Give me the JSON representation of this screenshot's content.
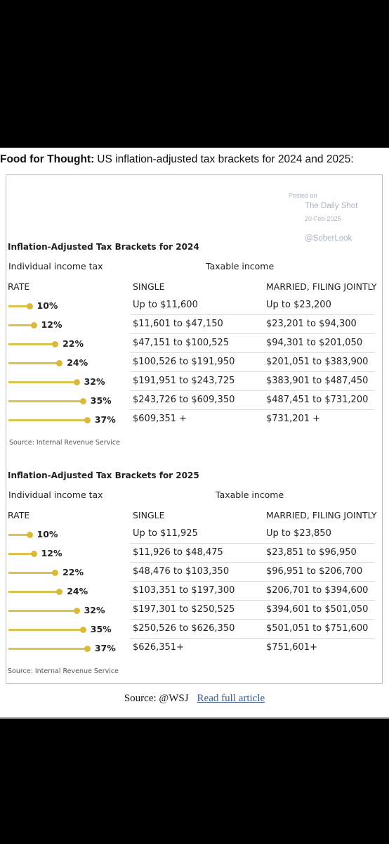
{
  "header": {
    "lead": "Food for Thought:",
    "text": "US inflation-adjusted tax brackets for 2024 and 2025:"
  },
  "watermark": {
    "posted": "Posted on",
    "site": "The Daily Shot",
    "date": "20-Feb-2025",
    "handle": "@SoberLook"
  },
  "tables": [
    {
      "title": "Inflation-Adjusted Tax Brackets for 2024",
      "group_left": "Individual income tax",
      "group_right": "Taxable income",
      "columns": [
        "RATE",
        "SINGLE",
        "MARRIED, FILING JOINTLY"
      ],
      "rows": [
        {
          "rate": 10,
          "rate_label": "10%",
          "single": "Up to $11,600",
          "married": "Up to $23,200"
        },
        {
          "rate": 12,
          "rate_label": "12%",
          "single": "$11,601 to $47,150",
          "married": "$23,201 to $94,300"
        },
        {
          "rate": 22,
          "rate_label": "22%",
          "single": "$47,151 to $100,525",
          "married": "$94,301 to $201,050"
        },
        {
          "rate": 24,
          "rate_label": "24%",
          "single": "$100,526 to $191,950",
          "married": "$201,051 to $383,900"
        },
        {
          "rate": 32,
          "rate_label": "32%",
          "single": "$191,951 to $243,725",
          "married": "$383,901 to $487,450"
        },
        {
          "rate": 35,
          "rate_label": "35%",
          "single": "$243,726 to $609,350",
          "married": "$487,451 to $731,200"
        },
        {
          "rate": 37,
          "rate_label": "37%",
          "single": "$609,351 +",
          "married": "$731,201 +"
        }
      ],
      "source": "Source: Internal Revenue Service"
    },
    {
      "title": "Inflation-Adjusted Tax Brackets for 2025",
      "group_left": "Individual income tax",
      "group_right": "Taxable income",
      "columns": [
        "RATE",
        "SINGLE",
        "MARRIED, FILING JOINTLY"
      ],
      "rows": [
        {
          "rate": 10,
          "rate_label": "10%",
          "single": "Up to $11,925",
          "married": "Up to $23,850"
        },
        {
          "rate": 12,
          "rate_label": "12%",
          "single": "$11,926 to $48,475",
          "married": "$23,851 to $96,950"
        },
        {
          "rate": 22,
          "rate_label": "22%",
          "single": "$48,476 to $103,350",
          "married": "$96,951 to $206,700"
        },
        {
          "rate": 24,
          "rate_label": "24%",
          "single": "$103,351 to $197,300",
          "married": "$206,701 to $394,600"
        },
        {
          "rate": 32,
          "rate_label": "32%",
          "single": "$197,301 to $250,525",
          "married": "$394,601 to $501,050"
        },
        {
          "rate": 35,
          "rate_label": "35%",
          "single": "$250,526 to $626,350",
          "married": "$501,051 to $751,600"
        },
        {
          "rate": 37,
          "rate_label": "37%",
          "single": "$626,351+",
          "married": "$751,601+"
        }
      ],
      "source": "Source: Internal Revenue Service"
    }
  ],
  "footer": {
    "source": "Source: @WSJ",
    "link": "Read full article"
  }
}
